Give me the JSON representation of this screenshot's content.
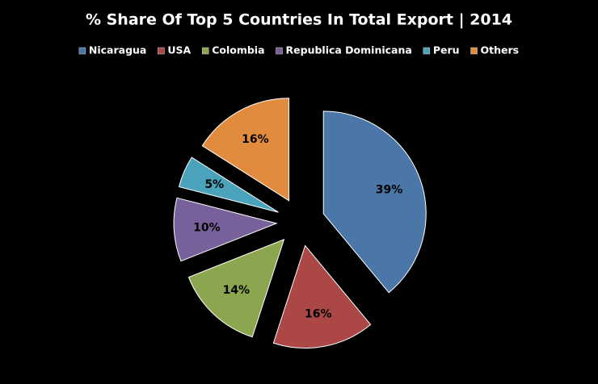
{
  "chart_data": {
    "type": "pie",
    "title": "% Share Of Top 5 Countries In Total Export | 2014",
    "categories": [
      "Nicaragua",
      "USA",
      "Colombia",
      "Republica Dominicana",
      "Peru",
      "Others"
    ],
    "values": [
      39,
      16,
      14,
      10,
      5,
      16
    ],
    "value_labels": [
      "39%",
      "16%",
      "14%",
      "10%",
      "5%",
      "16%"
    ],
    "colors": [
      "#4a76a8",
      "#ab4744",
      "#8ba64e",
      "#78609a",
      "#4aa3ba",
      "#e18b3e"
    ],
    "legend": "top"
  }
}
